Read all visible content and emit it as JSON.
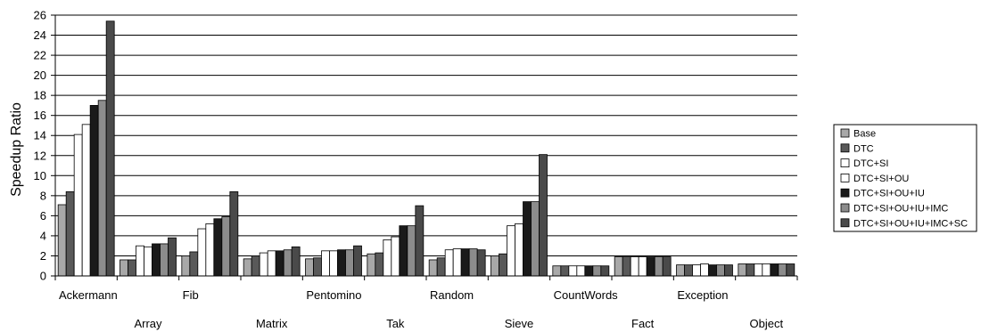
{
  "chart_data": {
    "type": "bar",
    "ylabel": "Speedup Ratio",
    "xlabel": "",
    "ylim": [
      0,
      26
    ],
    "yticks": [
      0,
      2,
      4,
      6,
      8,
      10,
      12,
      14,
      16,
      18,
      20,
      22,
      24,
      26
    ],
    "grid": true,
    "legend_position": "right",
    "categories": [
      "Ackermann",
      "Array",
      "Fib",
      "Matrix",
      "Pentomino",
      "Tak",
      "Random",
      "Sieve",
      "CountWords",
      "Fact",
      "Exception",
      "Object"
    ],
    "series": [
      {
        "name": "Base",
        "color": "#a8a8a8",
        "values": [
          7.1,
          1.6,
          2.0,
          1.7,
          1.7,
          2.2,
          1.6,
          2.0,
          1.0,
          1.9,
          1.1,
          1.2
        ]
      },
      {
        "name": "DTC",
        "color": "#595959",
        "values": [
          8.4,
          1.6,
          2.4,
          2.0,
          1.8,
          2.3,
          1.8,
          2.2,
          1.0,
          1.9,
          1.1,
          1.2
        ]
      },
      {
        "name": "DTC+SI",
        "color": "#ffffff",
        "values": [
          14.1,
          3.0,
          4.7,
          2.3,
          2.5,
          3.6,
          2.6,
          5.0,
          1.0,
          1.9,
          1.1,
          1.2
        ]
      },
      {
        "name": "DTC+SI+OU",
        "color": "#ffffff",
        "values": [
          15.1,
          2.9,
          5.2,
          2.5,
          2.5,
          3.9,
          2.7,
          5.2,
          1.0,
          1.9,
          1.2,
          1.2
        ]
      },
      {
        "name": "DTC+SI+OU+IU",
        "color": "#1a1a1a",
        "values": [
          17.0,
          3.2,
          5.7,
          2.5,
          2.6,
          5.0,
          2.7,
          7.4,
          1.0,
          1.9,
          1.1,
          1.2
        ]
      },
      {
        "name": "DTC+SI+OU+IU+IMC",
        "color": "#8c8c8c",
        "values": [
          17.5,
          3.2,
          5.9,
          2.6,
          2.6,
          5.0,
          2.7,
          7.4,
          1.0,
          1.9,
          1.1,
          1.2
        ]
      },
      {
        "name": "DTC+SI+OU+IU+IMC+SC",
        "color": "#4a4a4a",
        "values": [
          25.4,
          3.8,
          8.4,
          2.9,
          3.0,
          7.0,
          2.6,
          12.1,
          1.0,
          1.9,
          1.1,
          1.2
        ]
      }
    ]
  }
}
